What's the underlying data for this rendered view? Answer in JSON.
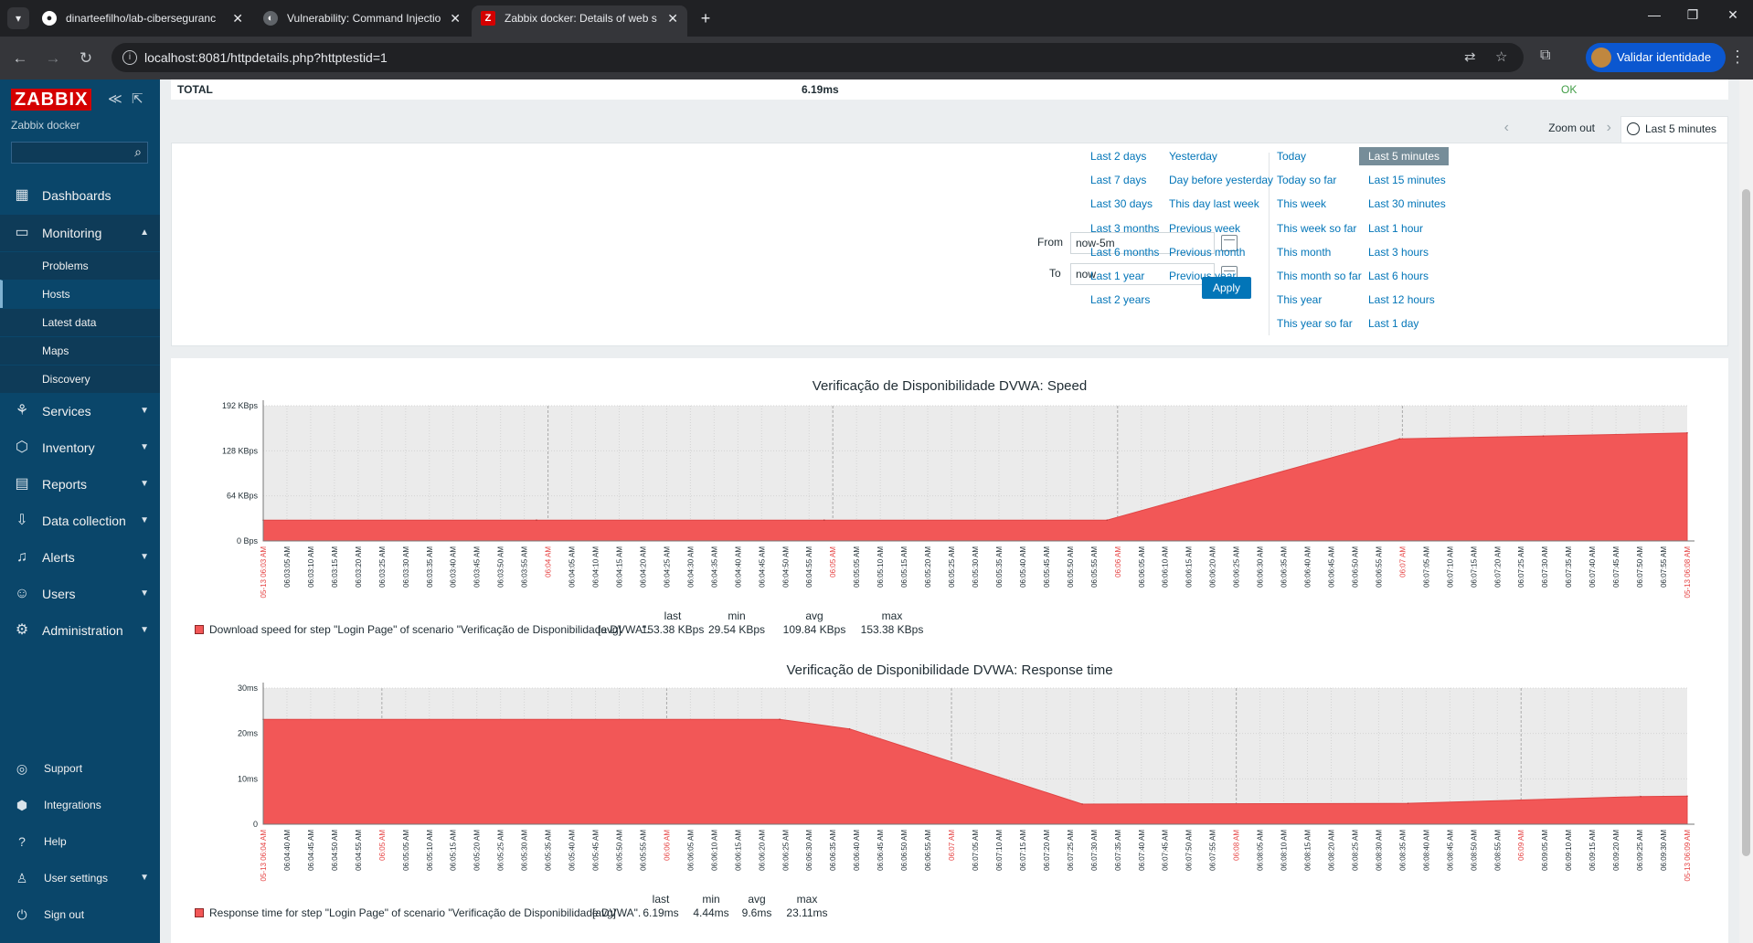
{
  "browser": {
    "tabs": [
      {
        "title": "dinarteefilho/lab-ciberseguranc",
        "icon": "github-icon"
      },
      {
        "title": "Vulnerability: Command Injectio",
        "icon": "dvwa-icon"
      },
      {
        "title": "Zabbix docker: Details of web s",
        "icon": "zabbix-icon",
        "active": true
      }
    ],
    "url": "localhost:8081/httpdetails.php?httptestid=1",
    "profile_button": "Validar identidade"
  },
  "sidebar": {
    "logo": "ZABBIX",
    "server_name": "Zabbix docker",
    "menu": [
      {
        "label": "Dashboards",
        "icon": "dashboard-icon"
      },
      {
        "label": "Monitoring",
        "icon": "monitoring-icon",
        "open": true
      },
      {
        "label": "Services",
        "icon": "services-icon"
      },
      {
        "label": "Inventory",
        "icon": "inventory-icon"
      },
      {
        "label": "Reports",
        "icon": "reports-icon"
      },
      {
        "label": "Data collection",
        "icon": "data-collection-icon"
      },
      {
        "label": "Alerts",
        "icon": "alerts-icon"
      },
      {
        "label": "Users",
        "icon": "users-icon"
      },
      {
        "label": "Administration",
        "icon": "administration-icon"
      }
    ],
    "monitoring_submenu": [
      "Problems",
      "Hosts",
      "Latest data",
      "Maps",
      "Discovery"
    ],
    "footer": [
      {
        "label": "Support",
        "icon": "support-icon"
      },
      {
        "label": "Integrations",
        "icon": "integrations-icon"
      },
      {
        "label": "Help",
        "icon": "help-icon"
      },
      {
        "label": "User settings",
        "icon": "user-settings-icon"
      },
      {
        "label": "Sign out",
        "icon": "sign-out-icon"
      }
    ]
  },
  "total_row": {
    "label": "TOTAL",
    "time": "6.19ms",
    "status": "OK"
  },
  "time_selector": {
    "zoom_out": "Zoom out",
    "active_tab": "Last 5 minutes",
    "from_label": "From",
    "from_value": "now-5m",
    "to_label": "To",
    "to_value": "now",
    "apply": "Apply",
    "quick_ranges": [
      [
        "Last 2 days",
        "Last 7 days",
        "Last 30 days",
        "Last 3 months",
        "Last 6 months",
        "Last 1 year",
        "Last 2 years"
      ],
      [
        "Yesterday",
        "Day before yesterday",
        "This day last week",
        "Previous week",
        "Previous month",
        "Previous year"
      ],
      [
        "Today",
        "Today so far",
        "This week",
        "This week so far",
        "This month",
        "This month so far",
        "This year",
        "This year so far"
      ],
      [
        "Last 5 minutes",
        "Last 15 minutes",
        "Last 30 minutes",
        "Last 1 hour",
        "Last 3 hours",
        "Last 6 hours",
        "Last 12 hours",
        "Last 1 day"
      ]
    ]
  },
  "chart_data": [
    {
      "type": "area",
      "title": "Verificação de Disponibilidade DVWA: Speed",
      "y_ticks": [
        "0 Bps",
        "64 KBps",
        "128 KBps",
        "192 KBps"
      ],
      "ylim": [
        0,
        192
      ],
      "y_unit": "KBps",
      "x": [
        "06:03:03",
        "06:04:00",
        "06:05:00",
        "06:05:59",
        "06:07:00",
        "06:07:30",
        "06:08:00"
      ],
      "values": [
        29.54,
        29.54,
        29.54,
        29.54,
        145,
        149,
        153.38
      ],
      "start_label": "05-13 06:03 AM",
      "end_label": "05-13 06:08 AM",
      "minute_labels": [
        "06:04 AM",
        "06:05 AM",
        "06:06 AM",
        "06:07 AM"
      ],
      "x_tick_labels": [
        "06:03:05 AM",
        "06:03:10 AM",
        "06:03:15 AM",
        "06:03:20 AM",
        "06:03:25 AM",
        "06:03:30 AM",
        "06:03:35 AM",
        "06:03:40 AM",
        "06:03:45 AM",
        "06:03:50 AM",
        "06:03:55 AM",
        "06:04 AM",
        "06:04:05 AM",
        "06:04:10 AM",
        "06:04:15 AM",
        "06:04:20 AM",
        "06:04:25 AM",
        "06:04:30 AM",
        "06:04:35 AM",
        "06:04:40 AM",
        "06:04:45 AM",
        "06:04:50 AM",
        "06:04:55 AM",
        "06:05 AM",
        "06:05:05 AM",
        "06:05:10 AM",
        "06:05:15 AM",
        "06:05:20 AM",
        "06:05:25 AM",
        "06:05:30 AM",
        "06:05:35 AM",
        "06:05:40 AM",
        "06:05:45 AM",
        "06:05:50 AM",
        "06:05:55 AM",
        "06:06 AM",
        "06:06:05 AM",
        "06:06:10 AM",
        "06:06:15 AM",
        "06:06:20 AM",
        "06:06:25 AM",
        "06:06:30 AM",
        "06:06:35 AM",
        "06:06:40 AM",
        "06:06:45 AM",
        "06:06:50 AM",
        "06:06:55 AM",
        "06:07 AM",
        "06:07:05 AM",
        "06:07:10 AM",
        "06:07:15 AM",
        "06:07:20 AM",
        "06:07:25 AM",
        "06:07:30 AM",
        "06:07:35 AM",
        "06:07:40 AM",
        "06:07:45 AM",
        "06:07:50 AM",
        "06:07:55 AM"
      ],
      "legend": {
        "item": "Download speed for step \"Login Page\" of scenario \"Verificação de Disponibilidade DVWA\".",
        "func": "[avg]",
        "last": "153.38 KBps",
        "min": "29.54 KBps",
        "avg": "109.84 KBps",
        "max": "153.38 KBps"
      },
      "color": "#f25757"
    },
    {
      "type": "area",
      "title": "Verificação de Disponibilidade DVWA: Response time",
      "y_ticks": [
        "0",
        "10ms",
        "20ms",
        "30ms"
      ],
      "ylim": [
        0,
        30
      ],
      "y_unit": "ms",
      "x": [
        "06:04:04",
        "06:05:55",
        "06:06:10",
        "06:07:00",
        "06:08:10",
        "06:09:00",
        "06:09:10"
      ],
      "values": [
        23.11,
        23.11,
        21,
        4.44,
        4.6,
        6.1,
        6.19
      ],
      "start_label": "05-13 06:04 AM",
      "end_label": "05-13 06:09 AM",
      "minute_labels": [
        "06:05 AM",
        "06:06 AM",
        "06:07 AM",
        "06:08 AM",
        "06:09 AM"
      ],
      "x_tick_labels": [
        "06:04:40 AM",
        "06:04:45 AM",
        "06:04:50 AM",
        "06:04:55 AM",
        "06:05 AM",
        "06:05:05 AM",
        "06:05:10 AM",
        "06:05:15 AM",
        "06:05:20 AM",
        "06:05:25 AM",
        "06:05:30 AM",
        "06:05:35 AM",
        "06:05:40 AM",
        "06:05:45 AM",
        "06:05:50 AM",
        "06:05:55 AM",
        "06:06 AM",
        "06:06:05 AM",
        "06:06:10 AM",
        "06:06:15 AM",
        "06:06:20 AM",
        "06:06:25 AM",
        "06:06:30 AM",
        "06:06:35 AM",
        "06:06:40 AM",
        "06:06:45 AM",
        "06:06:50 AM",
        "06:06:55 AM",
        "06:07 AM",
        "06:07:05 AM",
        "06:07:10 AM",
        "06:07:15 AM",
        "06:07:20 AM",
        "06:07:25 AM",
        "06:07:30 AM",
        "06:07:35 AM",
        "06:07:40 AM",
        "06:07:45 AM",
        "06:07:50 AM",
        "06:07:55 AM",
        "06:08 AM",
        "06:08:05 AM",
        "06:08:10 AM",
        "06:08:15 AM",
        "06:08:20 AM",
        "06:08:25 AM",
        "06:08:30 AM",
        "06:08:35 AM",
        "06:08:40 AM",
        "06:08:45 AM",
        "06:08:50 AM",
        "06:08:55 AM",
        "06:09 AM",
        "06:09:05 AM",
        "06:09:10 AM",
        "06:09:15 AM",
        "06:09:20 AM",
        "06:09:25 AM",
        "06:09:30 AM"
      ],
      "legend": {
        "item": "Response time for step \"Login Page\" of scenario \"Verificação de Disponibilidade DVWA\".",
        "func": "[avg]",
        "last": "6.19ms",
        "min": "4.44ms",
        "avg": "9.6ms",
        "max": "23.11ms"
      },
      "color": "#f25757"
    }
  ],
  "stat_headers": {
    "last": "last",
    "min": "min",
    "avg": "avg",
    "max": "max"
  }
}
